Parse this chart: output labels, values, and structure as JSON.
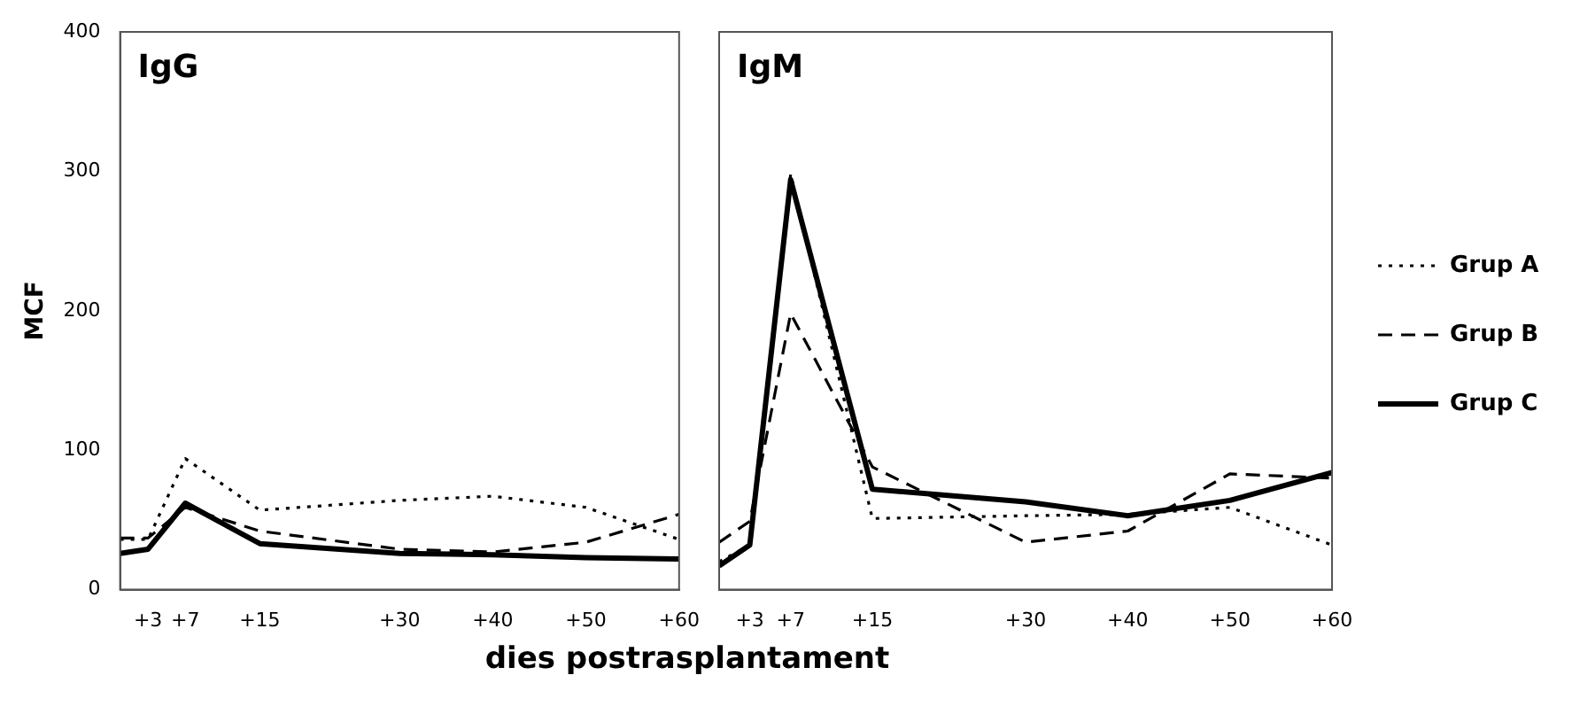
{
  "chart_data": [
    {
      "type": "line",
      "title": "IgG",
      "ylabel": "MCF",
      "xlabel": "dies postrasplantament",
      "x": [
        0,
        3,
        7,
        15,
        30,
        40,
        50,
        60
      ],
      "xlim": [
        0,
        60
      ],
      "xticks": [
        {
          "value": 3,
          "label": "+3"
        },
        {
          "value": 7,
          "label": "+7"
        },
        {
          "value": 15,
          "label": "+15"
        },
        {
          "value": 30,
          "label": "+30"
        },
        {
          "value": 40,
          "label": "+40"
        },
        {
          "value": 50,
          "label": "+50"
        },
        {
          "value": 60,
          "label": "+60"
        }
      ],
      "ylim": [
        0,
        400
      ],
      "yticks": [
        0,
        100,
        200,
        300,
        400
      ],
      "grid": false,
      "marker": "none",
      "legend": false,
      "series": [
        {
          "color": "#000000",
          "line_style": "dotted",
          "values": [
            36,
            36,
            94,
            57,
            64,
            67,
            59,
            36
          ]
        },
        {
          "color": "#000000",
          "line_style": "dashed",
          "values": [
            37,
            37,
            59,
            42,
            29,
            27,
            34,
            54
          ]
        },
        {
          "color": "#000000",
          "line_style": "solid",
          "values": [
            26,
            29,
            62,
            33,
            26,
            25,
            23,
            22
          ]
        }
      ]
    },
    {
      "type": "line",
      "title": "IgM",
      "x": [
        0,
        3,
        7,
        15,
        30,
        40,
        50,
        60
      ],
      "xlim": [
        0,
        60
      ],
      "xticks": [
        {
          "value": 3,
          "label": "+3"
        },
        {
          "value": 7,
          "label": "+7"
        },
        {
          "value": 15,
          "label": "+15"
        },
        {
          "value": 30,
          "label": "+30"
        },
        {
          "value": 40,
          "label": "+40"
        },
        {
          "value": 50,
          "label": "+50"
        },
        {
          "value": 60,
          "label": "+60"
        }
      ],
      "ylim": [
        0,
        400
      ],
      "yticks": [
        0,
        100,
        200,
        300,
        400
      ],
      "tick_labels": "x",
      "grid": false,
      "marker": "none",
      "legend": "right",
      "series": [
        {
          "name": "Grup A",
          "color": "#000000",
          "line_style": "dotted",
          "values": [
            20,
            32,
            298,
            51,
            53,
            54,
            59,
            32
          ]
        },
        {
          "name": "Grup B",
          "color": "#000000",
          "line_style": "dashed",
          "values": [
            34,
            49,
            198,
            88,
            34,
            42,
            83,
            80
          ]
        },
        {
          "name": "Grup C",
          "color": "#000000",
          "line_style": "solid",
          "values": [
            17,
            32,
            294,
            72,
            63,
            53,
            64,
            84
          ]
        }
      ]
    }
  ]
}
